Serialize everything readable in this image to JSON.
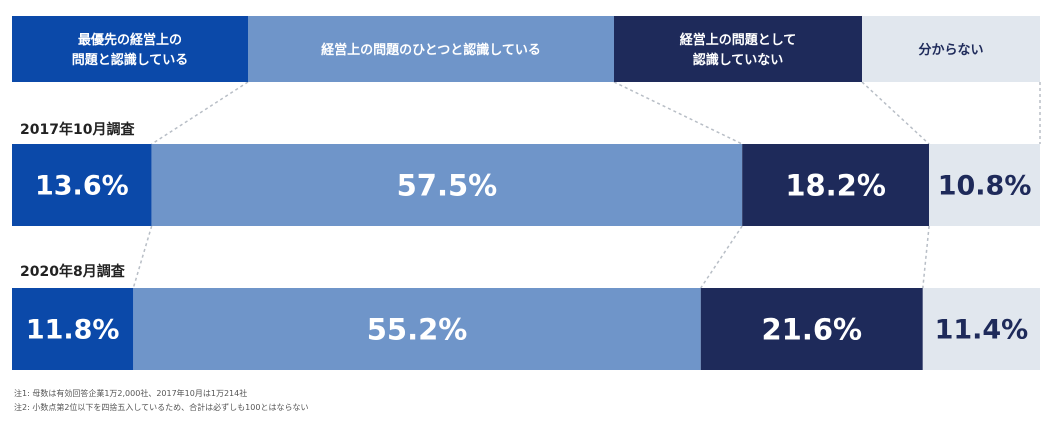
{
  "chart_data": {
    "type": "bar",
    "stacked": true,
    "orientation": "horizontal",
    "unit": "%",
    "categories": [
      "2017年10月調査",
      "2020年8月調査"
    ],
    "series": [
      {
        "name": "最優先の経営上の問題と認識している",
        "legend_lines": [
          "最優先の経営上の",
          "問題と認識している"
        ],
        "values": [
          13.6,
          11.8
        ],
        "labels": [
          "13.6%",
          "11.8%"
        ],
        "color": "#0b49a9",
        "text_color": "#ffffff"
      },
      {
        "name": "経営上の問題のひとつと認識している",
        "legend_lines": [
          "経営上の問題のひとつと認識している"
        ],
        "values": [
          57.5,
          55.2
        ],
        "labels": [
          "57.5%",
          "55.2%"
        ],
        "color": "#6f95c9",
        "text_color": "#ffffff"
      },
      {
        "name": "経営上の問題として認識していない",
        "legend_lines": [
          "経営上の問題として",
          "認識していない"
        ],
        "values": [
          18.2,
          21.6
        ],
        "labels": [
          "18.2%",
          "21.6%"
        ],
        "color": "#1e2a5a",
        "text_color": "#ffffff"
      },
      {
        "name": "分からない",
        "legend_lines": [
          "分からない"
        ],
        "values": [
          10.8,
          11.4
        ],
        "labels": [
          "10.8%",
          "11.4%"
        ],
        "color": "#e1e7ee",
        "text_color": "#1e2a5a"
      }
    ],
    "legend_position": "top",
    "grid": false
  },
  "notes": [
    "注1: 母数は有効回答企業1万2,000社、2017年10月は1万214社",
    "注2: 小数点第2位以下を四捨五入しているため、合計は必ずしも100とはならない"
  ],
  "colors": {
    "background": "#ffffff",
    "connector": "#b8bec6"
  }
}
